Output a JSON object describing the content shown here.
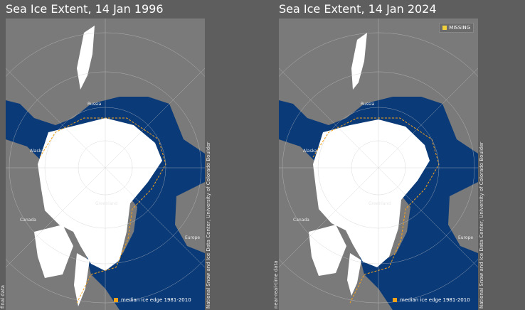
{
  "left": {
    "title": "Sea Ice Extent, 14 Jan 1996",
    "credit": "National Snow and Ice Data Center, University of Colorado Boulder",
    "side_note": "final data",
    "legend": "median ice edge 1981-2010"
  },
  "right": {
    "title": "Sea Ice Extent, 14 Jan 2024",
    "credit": "National Snow and Ice Data Center, University of Colorado Boulder",
    "side_note": "near-real-time data",
    "legend": "median ice edge 1981-2010",
    "missing": "MISSING"
  },
  "labels": {
    "russia": "Russia",
    "alaska": "Alaska",
    "canada": "Canada",
    "greenland": "Greenland",
    "europe": "Europe"
  },
  "colors": {
    "ocean": "#0a3a78",
    "land": "#7a7a7a",
    "ice": "#ffffff",
    "median_edge": "#f5a21b",
    "missing": "#f2d23a"
  }
}
